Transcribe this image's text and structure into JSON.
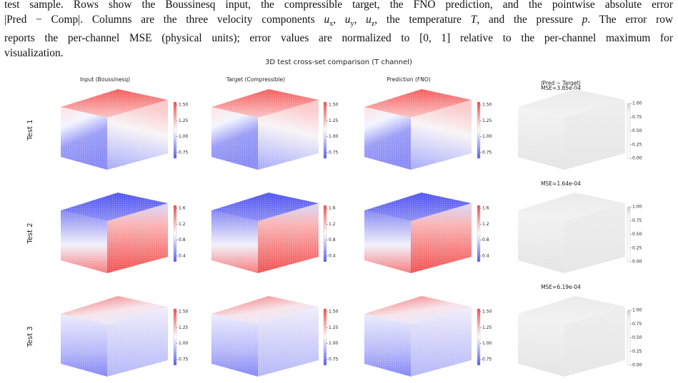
{
  "caption": {
    "lines": [
      "test sample. Rows show the Boussinesq input, the compressible target, the FNO prediction, and the pointwise absolute error",
      [
        "|Pred − Comp|. Columns are the three velocity components ",
        {
          "var": "u",
          "sub": "x"
        },
        ", ",
        {
          "var": "u",
          "sub": "y"
        },
        ", ",
        {
          "var": "u",
          "sub": "z"
        },
        ", the temperature ",
        {
          "var": "T"
        },
        ", and the pressure ",
        {
          "var": "p"
        },
        ". The error row"
      ],
      "reports the per-channel MSE (physical units); error values are normalized to [0, 1] relative to the per-channel maximum for",
      "visualization."
    ]
  },
  "figure": {
    "title": "3D test cross-set comparison (T channel)",
    "columns": [
      "Input (Boussinesq)",
      "Target (Compressible)",
      "Prediction (FNO)",
      "|Pred − Target|"
    ],
    "rows": [
      {
        "label": "Test 1",
        "colorbar_ticks": [
          "1.50",
          "1.25",
          "1.00",
          "0.75"
        ],
        "error_mse": "MSE=3.85e-04"
      },
      {
        "label": "Test 2",
        "colorbar_ticks": [
          "1.6",
          "1.2",
          "0.8",
          "0.4"
        ],
        "error_mse": "MSE=1.64e-04"
      },
      {
        "label": "Test 3",
        "colorbar_ticks": [
          "1.50",
          "1.25",
          "1.00",
          "0.75"
        ],
        "error_mse": "MSE=6.19e-04"
      }
    ],
    "error_colorbar_ticks": [
      "1.00",
      "0.75",
      "0.50",
      "0.25",
      "0.00"
    ]
  }
}
